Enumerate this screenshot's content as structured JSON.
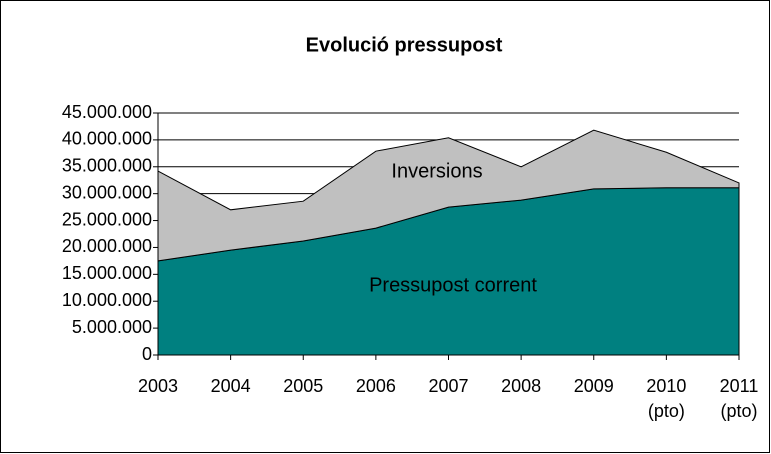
{
  "chart_data": {
    "type": "stacked_area",
    "title": "Evolució pressupost",
    "categories": [
      "2003",
      "2004",
      "2005",
      "2006",
      "2007",
      "2008",
      "2009",
      "2010\n(pto)",
      "2011\n(pto)"
    ],
    "series": [
      {
        "name": "Pressupost corrent",
        "color": "#008080",
        "values": [
          17500000,
          19500000,
          21200000,
          23600000,
          27500000,
          28800000,
          30900000,
          31100000,
          31100000
        ]
      },
      {
        "name": "Inversions",
        "color": "#c0c0c0",
        "values": [
          16700000,
          7500000,
          7400000,
          14300000,
          12900000,
          6200000,
          10900000,
          6600000,
          900000
        ]
      }
    ],
    "ylim": [
      0,
      45000000
    ],
    "yticks": [
      0,
      {
        "value": 5000000,
        "label": "5.000.000"
      },
      {
        "value": 10000000,
        "label": "10.000.000"
      },
      {
        "value": 15000000,
        "label": "15.000.000"
      },
      {
        "value": 20000000,
        "label": "20.000.000"
      },
      {
        "value": 25000000,
        "label": "25.000.000"
      },
      {
        "value": 30000000,
        "label": "30.000.000"
      },
      {
        "value": 35000000,
        "label": "35.000.000"
      },
      {
        "value": 40000000,
        "label": "40.000.000"
      },
      {
        "value": 45000000,
        "label": "45.000.000"
      }
    ],
    "grid": true
  }
}
